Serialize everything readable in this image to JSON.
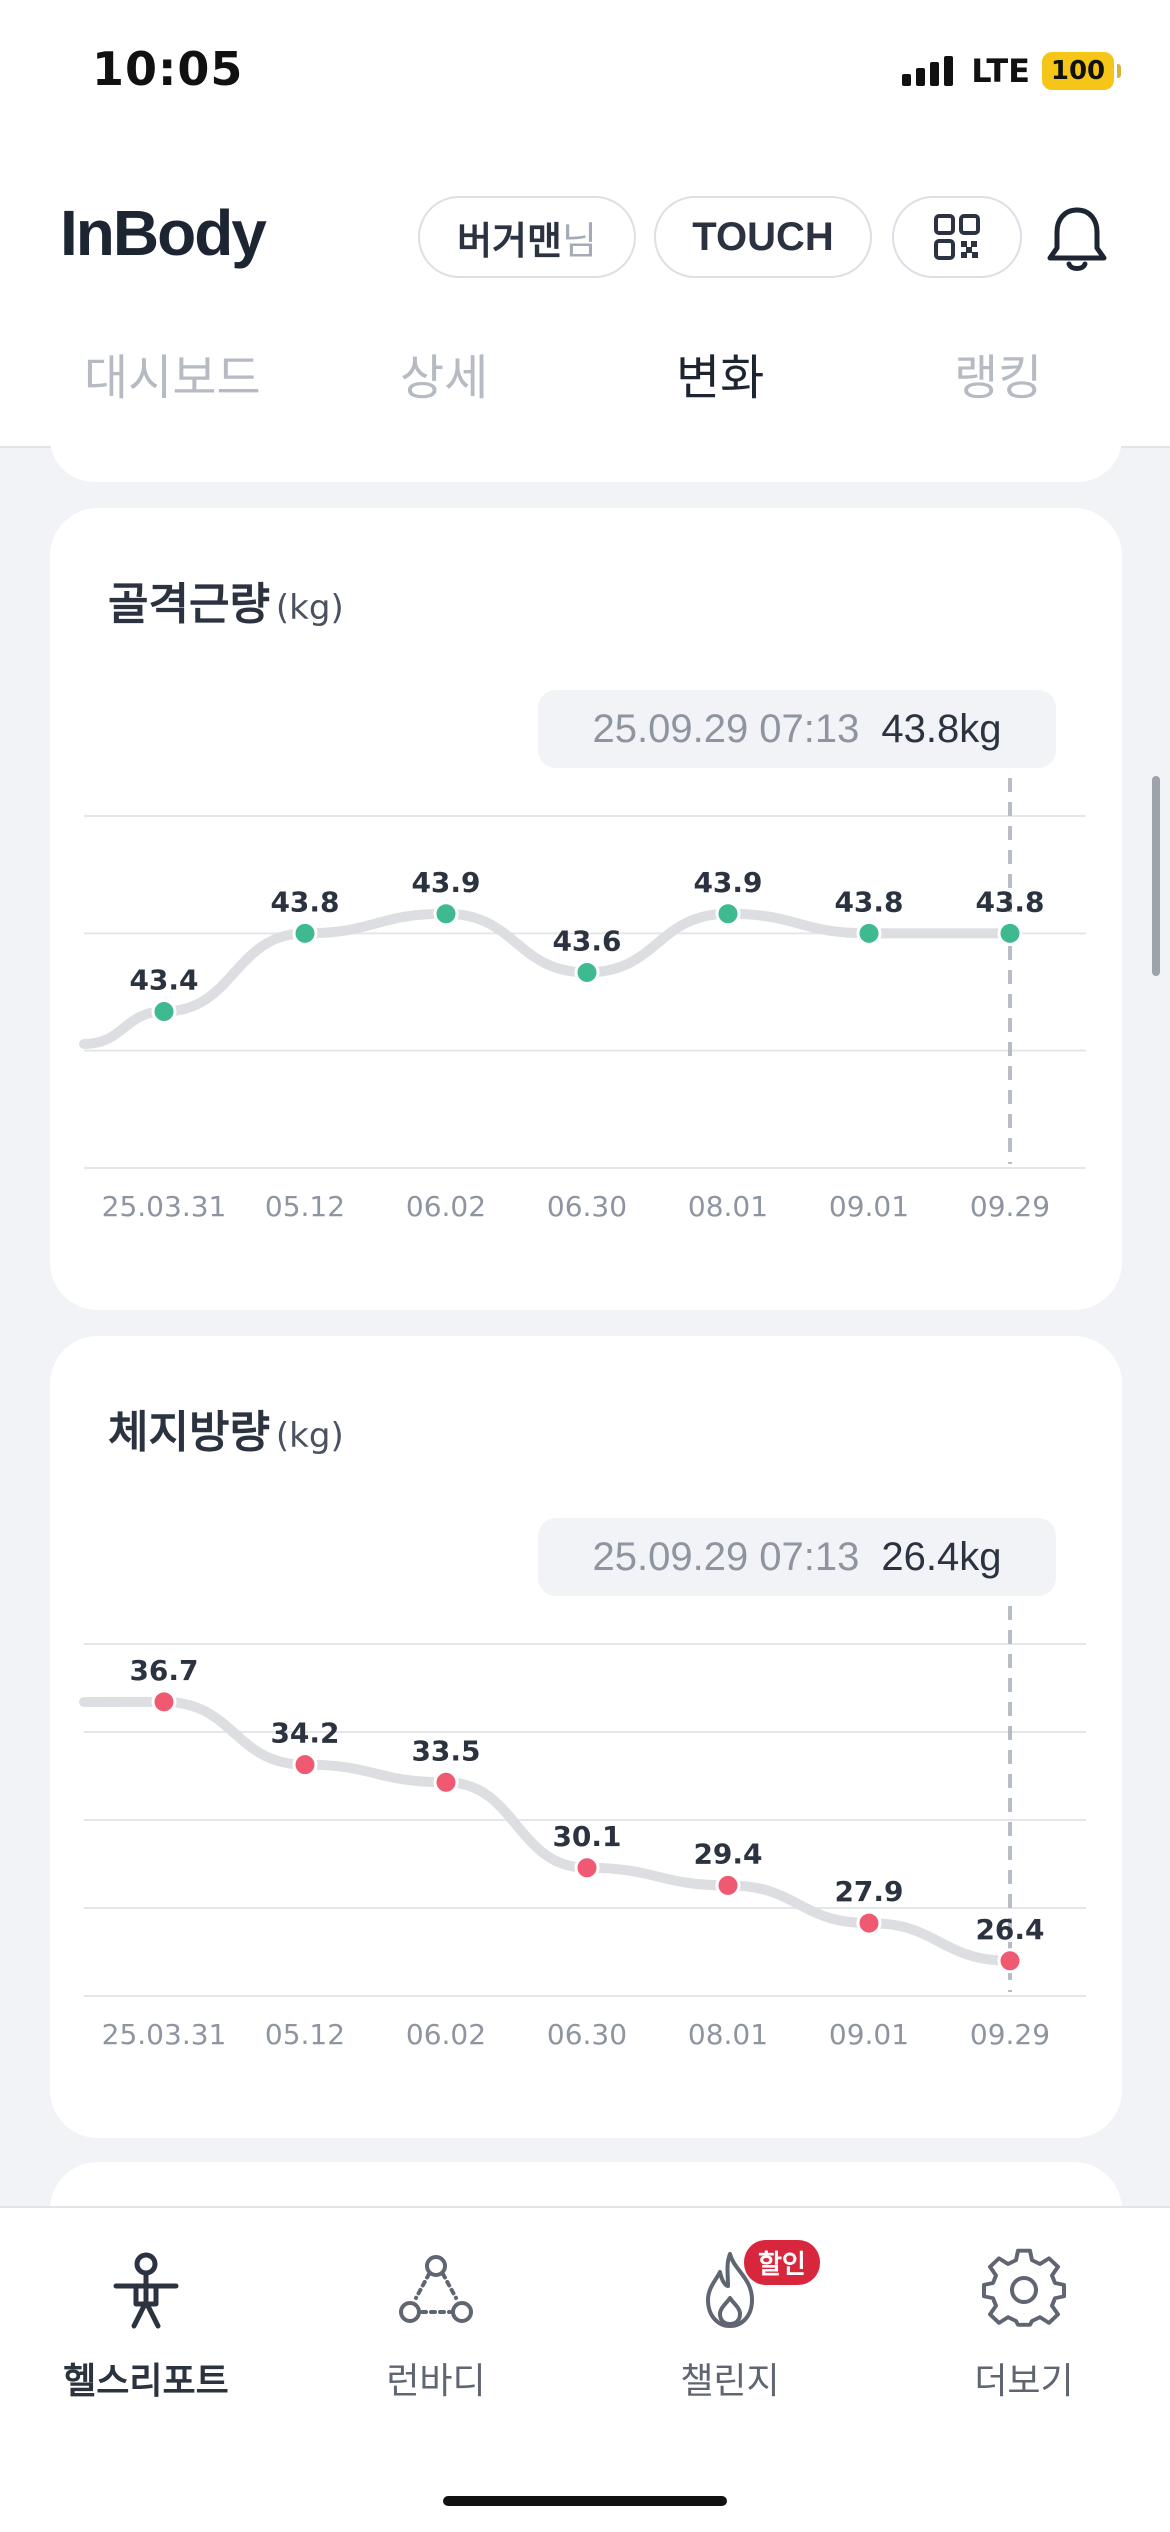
{
  "status_bar": {
    "time": "10:05",
    "network": "LTE",
    "battery": "100"
  },
  "header": {
    "logo": "InBody",
    "user_name": "버거맨",
    "user_suffix": "님",
    "touch_label": "TOUCH",
    "qr_icon": "qr-code-icon",
    "bell_icon": "bell-icon"
  },
  "tabs": [
    {
      "label": "대시보드",
      "active": false
    },
    {
      "label": "상세",
      "active": false
    },
    {
      "label": "변화",
      "active": true
    },
    {
      "label": "랭킹",
      "active": false
    }
  ],
  "cards": [
    {
      "title": "골격근량",
      "unit": "(kg)",
      "tooltip": {
        "date": "25.09.29 07:13",
        "value": "43.8kg"
      }
    },
    {
      "title": "체지방량",
      "unit": "(kg)",
      "tooltip": {
        "date": "25.09.29 07:13",
        "value": "26.4kg"
      }
    }
  ],
  "chart_data": [
    {
      "type": "line",
      "categories": [
        "25.03.31",
        "05.12",
        "06.02",
        "06.30",
        "08.01",
        "09.01",
        "09.29"
      ],
      "series": [
        {
          "values": [
            43.4,
            43.8,
            43.9,
            43.6,
            43.9,
            43.8,
            43.8
          ]
        }
      ],
      "ylim": [
        42.6,
        44.4
      ],
      "gridlines": 4,
      "point_color": "#3fb98f",
      "selected_index": 6
    },
    {
      "type": "line",
      "categories": [
        "25.03.31",
        "05.12",
        "06.02",
        "06.30",
        "08.01",
        "09.01",
        "09.29"
      ],
      "series": [
        {
          "values": [
            36.7,
            34.2,
            33.5,
            30.1,
            29.4,
            27.9,
            26.4
          ]
        }
      ],
      "ylim": [
        25,
        39
      ],
      "gridlines": 5,
      "point_color": "#ef5a72",
      "selected_index": 6
    }
  ],
  "bottom_nav": [
    {
      "label": "헬스리포트",
      "icon": "health-report-icon",
      "active": true
    },
    {
      "label": "런바디",
      "icon": "runbody-icon",
      "active": false
    },
    {
      "label": "챌린지",
      "icon": "challenge-flame-icon",
      "active": false,
      "badge": "할인"
    },
    {
      "label": "더보기",
      "icon": "settings-gear-icon",
      "active": false
    }
  ],
  "colors": {
    "accent": "#2c3340",
    "muscle_point": "#3fb98f",
    "fat_point": "#ef5a72",
    "line": "#dcdee2",
    "badge": "#d8273d"
  }
}
